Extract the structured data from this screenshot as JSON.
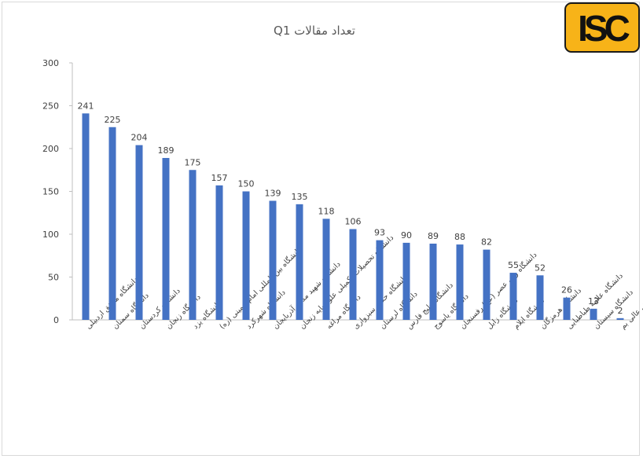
{
  "logo": {
    "text": "ISC"
  },
  "chart_data": {
    "type": "bar",
    "title": "تعداد مقالات Q1",
    "xlabel": "",
    "ylabel": "",
    "ylim": [
      0,
      300
    ],
    "yticks": [
      0,
      50,
      100,
      150,
      200,
      250,
      300
    ],
    "grid": false,
    "legend": "none",
    "bar_color": "#4472c4",
    "categories": [
      "دانشگاه محقق اردبیلی",
      "دانشگاه سمنان",
      "دانشگاه کردستان",
      "دانشگاه زنجان",
      "دانشگاه یزد",
      "دانشگاه بین المللی امام خمینی (ره)",
      "دانشگاه شهرکرد",
      "دانشگاه شهید مدنی آذربایجان",
      "دانشگاه تحصیلات تکمیلی علوم پایه زنجان",
      "دانشگاه مراغه",
      "دانشگاه حکیم سبزواری",
      "دانشگاه لرستان",
      "دانشگاه خلیج فارس",
      "دانشگاه یاسوج",
      "دانشگاه ولی عصر (عج) رفسنجان",
      "دانشگاه زابل",
      "دانشگاه ایلام",
      "دانشگاه هرمزگان",
      "دانشگاه علامه طباطبایی",
      "دانشگاه سیستان",
      "مجتمع آموزش عالی بم"
    ],
    "values": [
      241,
      225,
      204,
      189,
      175,
      157,
      150,
      139,
      135,
      118,
      106,
      93,
      90,
      89,
      88,
      82,
      55,
      52,
      26,
      13,
      2
    ]
  }
}
